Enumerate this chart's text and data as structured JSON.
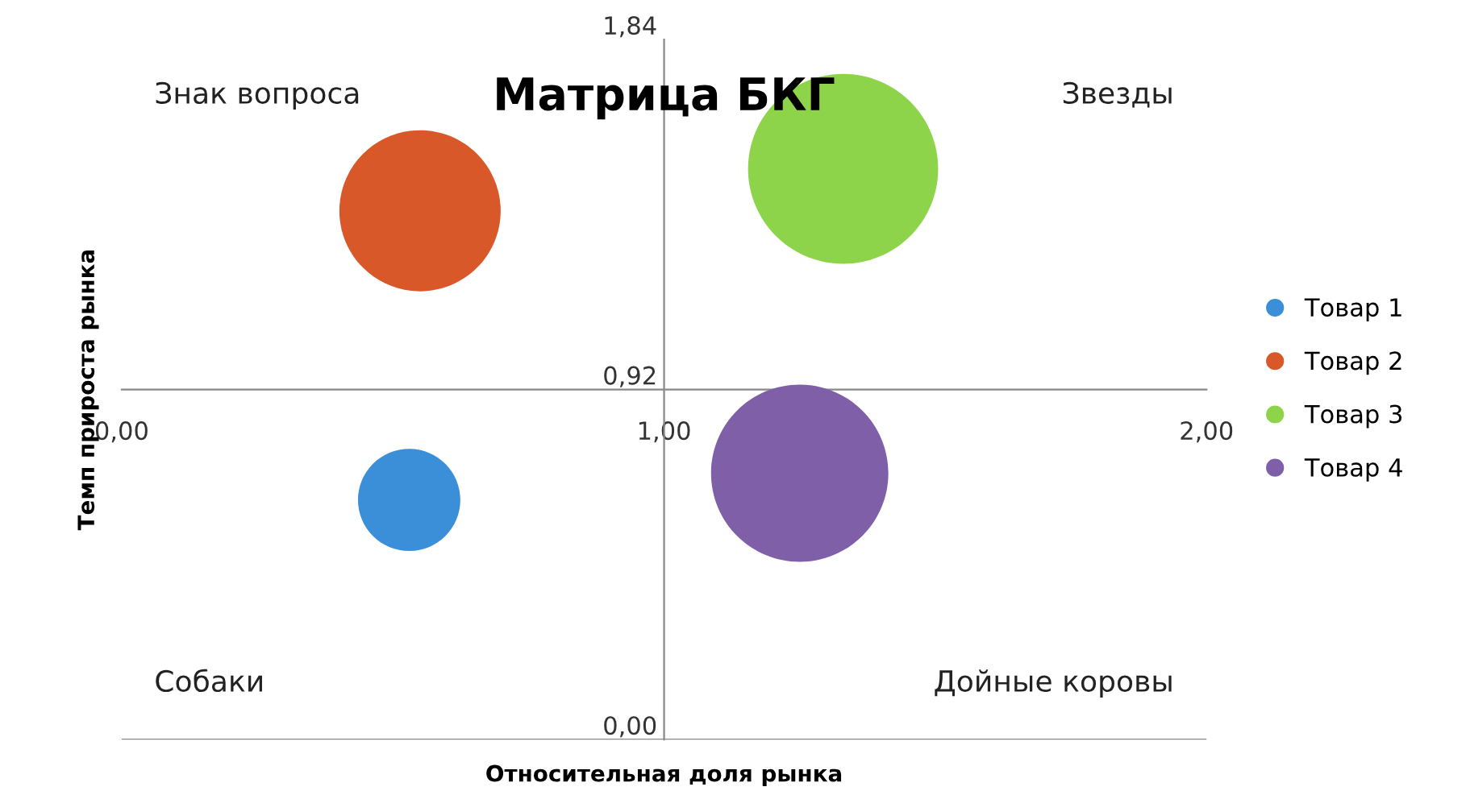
{
  "chart_data": {
    "type": "bubble",
    "title": "Матрица БКГ",
    "xlabel": "Относительная доля рынка",
    "ylabel": "Темп прироста рынка",
    "annotations": [
      "Знак вопроса",
      "Звезды",
      "Собаки",
      "Дойные коровы"
    ],
    "series": [
      {
        "name": "Товар 1",
        "color": "#3a8fd8",
        "x": [
          0.53
        ],
        "values": [
          0.63
        ],
        "sizes": [
          0.29
        ]
      },
      {
        "name": "Товар 2",
        "color": "#d8582a",
        "x": [
          0.55
        ],
        "values": [
          1.39
        ],
        "sizes": [
          0.72
        ]
      },
      {
        "name": "Товар 3",
        "color": "#8ed44a",
        "x": [
          1.33
        ],
        "values": [
          1.5
        ],
        "sizes": [
          1
        ]
      },
      {
        "name": "Товар 4",
        "color": "#7f5fa8",
        "x": [
          1.25
        ],
        "values": [
          0.7
        ],
        "sizes": [
          0.87
        ]
      }
    ],
    "xlim": [
      0,
      2
    ],
    "xticks": [
      {
        "value": 0,
        "label": "0,00"
      },
      {
        "value": 1,
        "label": "1,00"
      },
      {
        "value": 2,
        "label": "2,00"
      }
    ],
    "ylim": [
      0,
      1.84
    ],
    "yticks": [
      {
        "value": 0,
        "label": "0,00"
      },
      {
        "value": 0.92,
        "label": "0,92"
      },
      {
        "value": 1.84,
        "label": "1,84"
      }
    ],
    "legend": "right"
  }
}
